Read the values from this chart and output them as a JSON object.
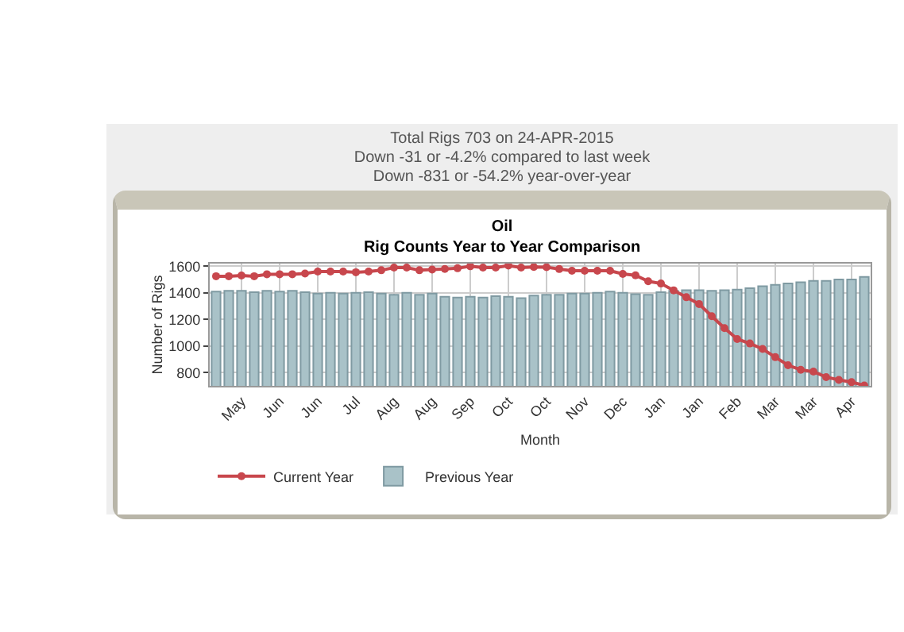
{
  "chart_data": {
    "type": "bar",
    "title": "Oil",
    "subtitle": "Rig Counts Year to Year Comparison",
    "xlabel": "Month",
    "ylabel": "Number of Rigs",
    "annotations": [
      "Total Rigs 703 on 24-APR-2015",
      "Down -31 or -4.2% compared to last week",
      "Down -831 or -54.2% year-over-year"
    ],
    "categories": [
      null,
      null,
      "May",
      null,
      null,
      "Jun",
      null,
      null,
      "Jun",
      null,
      null,
      "Jul",
      null,
      null,
      "Aug",
      null,
      null,
      "Aug",
      null,
      null,
      "Sep",
      null,
      null,
      "Oct",
      null,
      null,
      "Oct",
      null,
      null,
      "Nov",
      null,
      null,
      "Dec",
      null,
      null,
      "Jan",
      null,
      null,
      "Jan",
      null,
      null,
      "Feb",
      null,
      null,
      "Mar",
      null,
      null,
      "Mar",
      null,
      null,
      "Apr",
      null
    ],
    "series": [
      {
        "name": "Current Year",
        "type": "line",
        "color": "#c8474d",
        "marker": "circle",
        "values": [
          1525,
          1525,
          1530,
          1525,
          1540,
          1540,
          1540,
          1545,
          1560,
          1560,
          1560,
          1555,
          1560,
          1570,
          1590,
          1590,
          1570,
          1575,
          1580,
          1585,
          1600,
          1590,
          1590,
          1605,
          1590,
          1595,
          1593,
          1579,
          1566,
          1566,
          1566,
          1566,
          1542,
          1532,
          1487,
          1470,
          1419,
          1367,
          1316,
          1224,
          1135,
          1053,
          1019,
          978,
          916,
          855,
          821,
          807,
          766,
          745,
          728,
          703
        ]
      },
      {
        "name": "Previous Year",
        "color": "#a9c2c8",
        "values": [
          1410,
          1415,
          1415,
          1405,
          1415,
          1410,
          1415,
          1405,
          1395,
          1400,
          1395,
          1400,
          1405,
          1395,
          1385,
          1400,
          1385,
          1395,
          1370,
          1365,
          1370,
          1365,
          1375,
          1370,
          1360,
          1380,
          1385,
          1385,
          1395,
          1395,
          1400,
          1410,
          1400,
          1390,
          1385,
          1405,
          1415,
          1420,
          1420,
          1415,
          1420,
          1425,
          1435,
          1450,
          1460,
          1470,
          1480,
          1490,
          1490,
          1500,
          1500,
          1520
        ]
      }
    ],
    "ylim": [
      700,
      1620
    ],
    "yticks": [
      800,
      1000,
      1200,
      1400,
      1600
    ],
    "grid": true,
    "legend": "bottom left"
  }
}
